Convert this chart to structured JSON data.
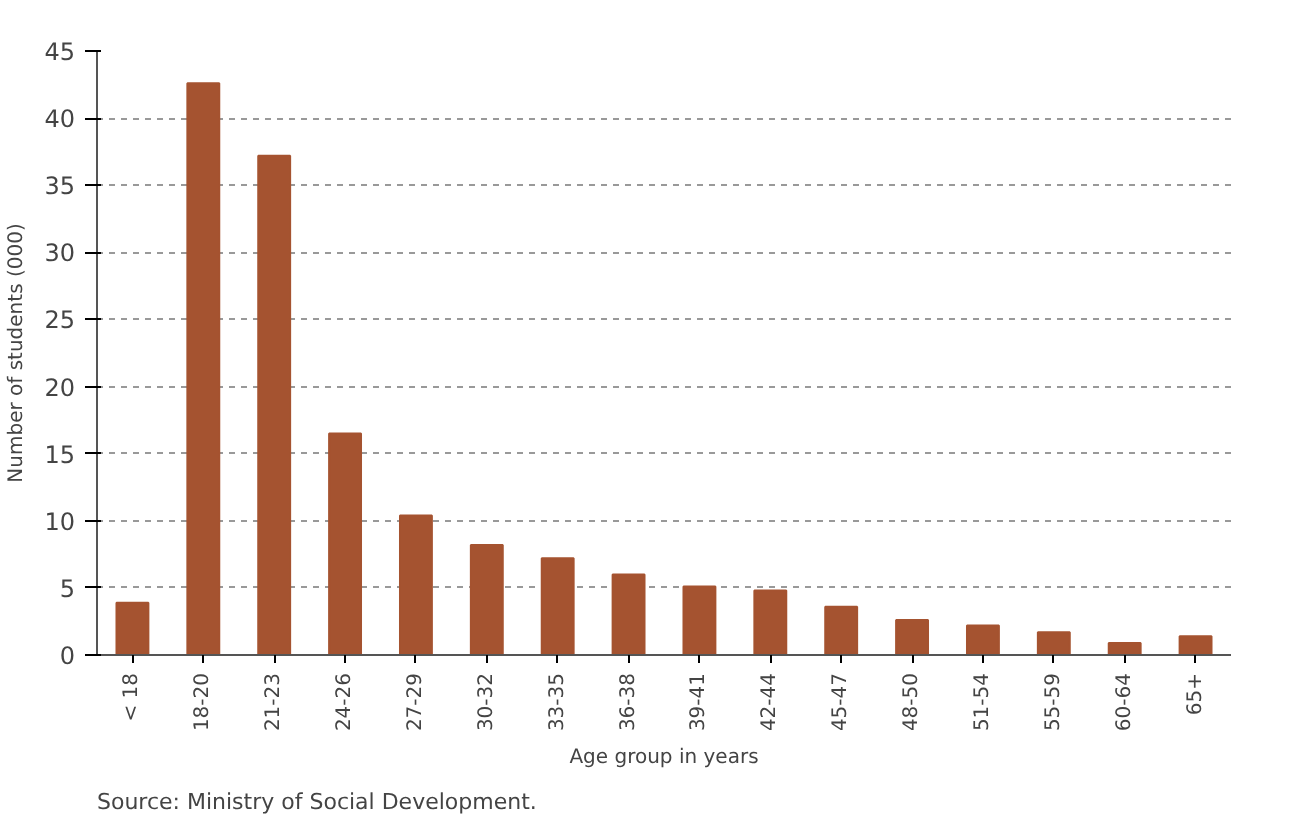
{
  "chart_data": {
    "type": "bar",
    "categories": [
      "< 18",
      "18-20",
      "21-23",
      "24-26",
      "27-29",
      "30-32",
      "33-35",
      "36-38",
      "39-41",
      "42-44",
      "45-47",
      "48-50",
      "51-54",
      "55-59",
      "60-64",
      "65+"
    ],
    "values": [
      3.9,
      42.6,
      37.2,
      16.5,
      10.4,
      8.2,
      7.2,
      6.0,
      5.1,
      4.8,
      3.6,
      2.6,
      2.2,
      1.7,
      0.9,
      1.4
    ],
    "color": "#a55330",
    "xlabel": "Age group in years",
    "ylabel": "Number of students (000)",
    "ylim": [
      0,
      45
    ],
    "yticks": [
      0,
      5,
      10,
      15,
      20,
      25,
      30,
      35,
      40,
      45
    ],
    "grid": "y",
    "annotations": [
      "Source: Ministry of Social Development."
    ]
  }
}
